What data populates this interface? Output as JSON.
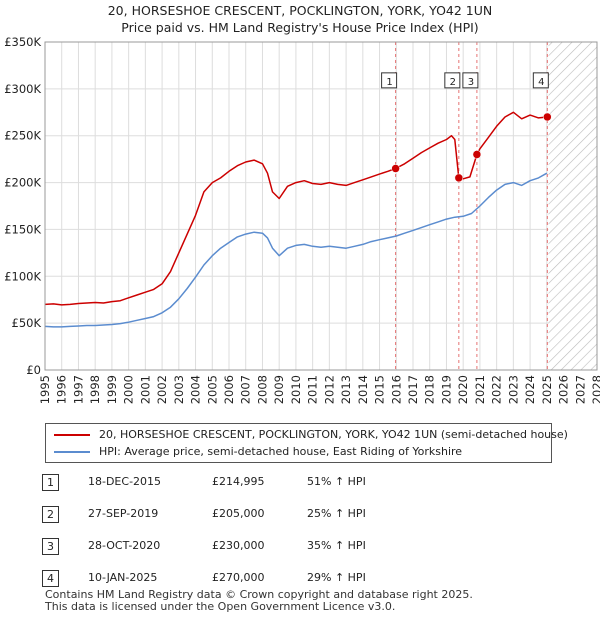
{
  "title_line1": "20, HORSESHOE CRESCENT, POCKLINGTON, YORK, YO42 1UN",
  "title_line2": "Price paid vs. HM Land Registry's House Price Index (HPI)",
  "chart_data": {
    "type": "line",
    "title": "20, HORSESHOE CRESCENT, POCKLINGTON, YORK, YO42 1UN — Price paid vs. HM Land Registry's House Price Index (HPI)",
    "xlim": [
      1995,
      2028
    ],
    "ylim": [
      0,
      350000
    ],
    "x_ticks": [
      1995,
      1996,
      1997,
      1998,
      1999,
      2000,
      2001,
      2002,
      2003,
      2004,
      2005,
      2006,
      2007,
      2008,
      2009,
      2010,
      2011,
      2012,
      2013,
      2014,
      2015,
      2016,
      2017,
      2018,
      2019,
      2020,
      2021,
      2022,
      2023,
      2024,
      2025,
      2026,
      2027,
      2028
    ],
    "y_ticks": [
      {
        "value": 0,
        "label": "£0"
      },
      {
        "value": 50000,
        "label": "£50K"
      },
      {
        "value": 100000,
        "label": "£100K"
      },
      {
        "value": 150000,
        "label": "£150K"
      },
      {
        "value": 200000,
        "label": "£200K"
      },
      {
        "value": 250000,
        "label": "£250K"
      },
      {
        "value": 300000,
        "label": "£300K"
      },
      {
        "value": 350000,
        "label": "£350K"
      }
    ],
    "grid": true,
    "forecast_shade_from": 2025.1,
    "series": [
      {
        "name": "20, HORSESHOE CRESCENT, POCKLINGTON, YORK, YO42 1UN (semi-detached house)",
        "color": "#cc0000",
        "points": [
          [
            1995.0,
            70000
          ],
          [
            1995.5,
            70500
          ],
          [
            1996.0,
            69500
          ],
          [
            1996.5,
            70000
          ],
          [
            1997.0,
            71000
          ],
          [
            1997.5,
            71500
          ],
          [
            1998.0,
            72000
          ],
          [
            1998.5,
            71500
          ],
          [
            1999.0,
            73000
          ],
          [
            1999.5,
            74000
          ],
          [
            2000.0,
            77000
          ],
          [
            2000.5,
            80000
          ],
          [
            2001.0,
            83000
          ],
          [
            2001.5,
            86000
          ],
          [
            2002.0,
            92000
          ],
          [
            2002.5,
            105000
          ],
          [
            2003.0,
            125000
          ],
          [
            2003.5,
            145000
          ],
          [
            2004.0,
            165000
          ],
          [
            2004.5,
            190000
          ],
          [
            2005.0,
            200000
          ],
          [
            2005.5,
            205000
          ],
          [
            2006.0,
            212000
          ],
          [
            2006.5,
            218000
          ],
          [
            2007.0,
            222000
          ],
          [
            2007.5,
            224000
          ],
          [
            2008.0,
            220000
          ],
          [
            2008.3,
            210000
          ],
          [
            2008.6,
            190000
          ],
          [
            2009.0,
            183000
          ],
          [
            2009.5,
            196000
          ],
          [
            2010.0,
            200000
          ],
          [
            2010.5,
            202000
          ],
          [
            2011.0,
            199000
          ],
          [
            2011.5,
            198000
          ],
          [
            2012.0,
            200000
          ],
          [
            2012.5,
            198000
          ],
          [
            2013.0,
            197000
          ],
          [
            2013.5,
            200000
          ],
          [
            2014.0,
            203000
          ],
          [
            2014.5,
            206000
          ],
          [
            2015.0,
            209000
          ],
          [
            2015.5,
            212000
          ],
          [
            2015.96,
            214995
          ],
          [
            2016.5,
            220000
          ],
          [
            2017.0,
            226000
          ],
          [
            2017.5,
            232000
          ],
          [
            2018.0,
            237000
          ],
          [
            2018.5,
            242000
          ],
          [
            2019.0,
            246000
          ],
          [
            2019.3,
            250000
          ],
          [
            2019.5,
            246000
          ],
          [
            2019.74,
            205000
          ],
          [
            2020.0,
            204000
          ],
          [
            2020.4,
            206000
          ],
          [
            2020.82,
            230000
          ],
          [
            2021.0,
            236000
          ],
          [
            2021.5,
            248000
          ],
          [
            2022.0,
            260000
          ],
          [
            2022.5,
            270000
          ],
          [
            2023.0,
            275000
          ],
          [
            2023.5,
            268000
          ],
          [
            2024.0,
            272000
          ],
          [
            2024.5,
            269000
          ],
          [
            2025.03,
            270000
          ]
        ]
      },
      {
        "name": "HPI: Average price, semi-detached house, East Riding of Yorkshire",
        "color": "#5b8ccf",
        "points": [
          [
            1995.0,
            46500
          ],
          [
            1995.5,
            46000
          ],
          [
            1996.0,
            46000
          ],
          [
            1996.5,
            46500
          ],
          [
            1997.0,
            47000
          ],
          [
            1997.5,
            47500
          ],
          [
            1998.0,
            47500
          ],
          [
            1998.5,
            48000
          ],
          [
            1999.0,
            48500
          ],
          [
            1999.5,
            49500
          ],
          [
            2000.0,
            51000
          ],
          [
            2000.5,
            53000
          ],
          [
            2001.0,
            55000
          ],
          [
            2001.5,
            57000
          ],
          [
            2002.0,
            61000
          ],
          [
            2002.5,
            67000
          ],
          [
            2003.0,
            76000
          ],
          [
            2003.5,
            87000
          ],
          [
            2004.0,
            99000
          ],
          [
            2004.5,
            112000
          ],
          [
            2005.0,
            122000
          ],
          [
            2005.5,
            130000
          ],
          [
            2006.0,
            136000
          ],
          [
            2006.5,
            142000
          ],
          [
            2007.0,
            145000
          ],
          [
            2007.5,
            147000
          ],
          [
            2008.0,
            146000
          ],
          [
            2008.3,
            141000
          ],
          [
            2008.6,
            130000
          ],
          [
            2009.0,
            122000
          ],
          [
            2009.5,
            130000
          ],
          [
            2010.0,
            133000
          ],
          [
            2010.5,
            134000
          ],
          [
            2011.0,
            132000
          ],
          [
            2011.5,
            131000
          ],
          [
            2012.0,
            132000
          ],
          [
            2012.5,
            131000
          ],
          [
            2013.0,
            130000
          ],
          [
            2013.5,
            132000
          ],
          [
            2014.0,
            134000
          ],
          [
            2014.5,
            137000
          ],
          [
            2015.0,
            139000
          ],
          [
            2015.5,
            141000
          ],
          [
            2016.0,
            143000
          ],
          [
            2016.5,
            146000
          ],
          [
            2017.0,
            149000
          ],
          [
            2017.5,
            152000
          ],
          [
            2018.0,
            155000
          ],
          [
            2018.5,
            158000
          ],
          [
            2019.0,
            161000
          ],
          [
            2019.5,
            163000
          ],
          [
            2020.0,
            164000
          ],
          [
            2020.5,
            167000
          ],
          [
            2021.0,
            175000
          ],
          [
            2021.5,
            184000
          ],
          [
            2022.0,
            192000
          ],
          [
            2022.5,
            198000
          ],
          [
            2023.0,
            200000
          ],
          [
            2023.5,
            197000
          ],
          [
            2024.0,
            202000
          ],
          [
            2024.5,
            205000
          ],
          [
            2025.0,
            210000
          ]
        ]
      }
    ],
    "sales": [
      {
        "n": "1",
        "x": 2015.96,
        "y": 214995
      },
      {
        "n": "2",
        "x": 2019.74,
        "y": 205000
      },
      {
        "n": "3",
        "x": 2020.82,
        "y": 230000
      },
      {
        "n": "4",
        "x": 2025.03,
        "y": 270000
      }
    ]
  },
  "legend": {
    "property_label": "20, HORSESHOE CRESCENT, POCKLINGTON, YORK, YO42 1UN (semi-detached house)",
    "property_color": "#cc0000",
    "hpi_label": "HPI: Average price, semi-detached house, East Riding of Yorkshire",
    "hpi_color": "#5b8ccf"
  },
  "sales_table": [
    {
      "num": "1",
      "date": "18-DEC-2015",
      "price": "£214,995",
      "hpi": "51% ↑ HPI"
    },
    {
      "num": "2",
      "date": "27-SEP-2019",
      "price": "£205,000",
      "hpi": "25% ↑ HPI"
    },
    {
      "num": "3",
      "date": "28-OCT-2020",
      "price": "£230,000",
      "hpi": "35% ↑ HPI"
    },
    {
      "num": "4",
      "date": "10-JAN-2025",
      "price": "£270,000",
      "hpi": "29% ↑ HPI"
    }
  ],
  "footer_line1": "Contains HM Land Registry data © Crown copyright and database right 2025.",
  "footer_line2": "This data is licensed under the Open Government Licence v3.0."
}
